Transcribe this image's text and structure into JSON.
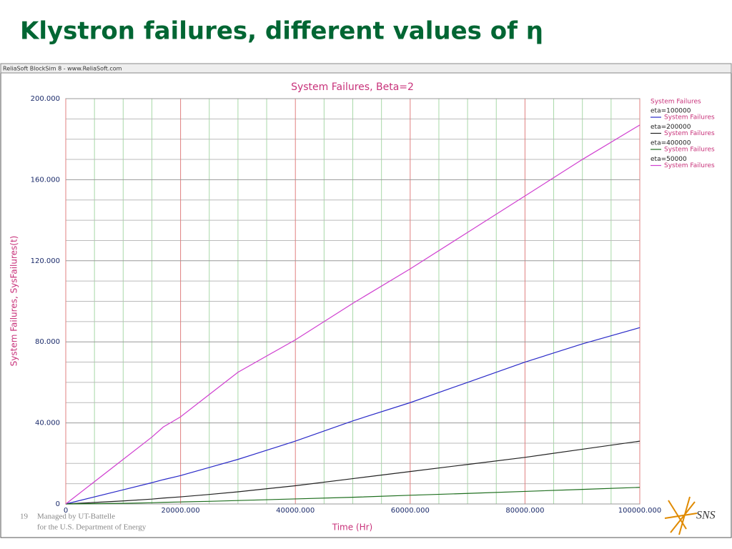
{
  "slide_title": "Klystron failures, different values of η",
  "window_title": "ReliaSoft BlockSim 8 - www.ReliaSoft.com",
  "footer": {
    "page_number": "19",
    "lines": [
      "Managed by UT-Battelle",
      "for the U.S. Department of Energy"
    ],
    "logo": "SNS"
  },
  "chart_data": {
    "type": "line",
    "title": "System Failures, Beta=2",
    "x_label": "Time (Hr)",
    "y_label": "System Failures, SysFailures(t)",
    "legend_title": "System Failures",
    "x": [
      0,
      10000,
      15000,
      17000,
      20000,
      25000,
      30000,
      40000,
      50000,
      60000,
      70000,
      80000,
      90000,
      100000
    ],
    "series": [
      {
        "name": "eta=100000",
        "legend_label": "System Failures",
        "color": "#2a2ac8",
        "values": [
          0,
          7,
          10.5,
          12,
          14,
          18,
          22,
          31,
          41,
          50,
          60,
          70,
          79,
          87
        ]
      },
      {
        "name": "eta=200000",
        "legend_label": "System Failures",
        "color": "#222222",
        "values": [
          0,
          1.5,
          2.4,
          2.9,
          3.5,
          4.7,
          6,
          9,
          12.5,
          16,
          19.5,
          23,
          27,
          31
        ]
      },
      {
        "name": "eta=400000",
        "legend_label": "System Failures",
        "color": "#1e6e1e",
        "values": [
          0,
          0.3,
          0.6,
          0.8,
          1,
          1.3,
          1.7,
          2.5,
          3.3,
          4.3,
          5.2,
          6.2,
          7.2,
          8.2
        ]
      },
      {
        "name": "eta=50000",
        "legend_label": "System Failures",
        "color": "#d040d0",
        "values": [
          0,
          22,
          33,
          38,
          43,
          54,
          65,
          81,
          99,
          116,
          134,
          152,
          170,
          187
        ]
      }
    ],
    "xlim": [
      0,
      100000
    ],
    "xticks": [
      0,
      {
        "value": 20000,
        "label": "20000.000"
      },
      {
        "value": 40000,
        "label": "40000.000"
      },
      {
        "value": 60000,
        "label": "60000.000"
      },
      {
        "value": 80000,
        "label": "80000.000"
      },
      {
        "value": 100000,
        "label": "100000.000"
      }
    ],
    "x_minor_ticks": [
      5000,
      10000,
      15000,
      25000,
      30000,
      35000,
      45000,
      50000,
      55000,
      65000,
      70000,
      75000,
      85000,
      90000,
      95000
    ],
    "ylim": [
      0,
      200
    ],
    "yticks": [
      0,
      {
        "value": 40,
        "label": "40.000"
      },
      {
        "value": 80,
        "label": "80.000"
      },
      {
        "value": 120,
        "label": "120.000"
      },
      {
        "value": 160,
        "label": "160.000"
      },
      {
        "value": 200,
        "label": "200.000"
      }
    ],
    "y_minor_ticks": [
      10,
      20,
      30,
      50,
      60,
      70,
      90,
      100,
      110,
      130,
      140,
      150,
      170,
      180,
      190
    ],
    "grid": true
  }
}
